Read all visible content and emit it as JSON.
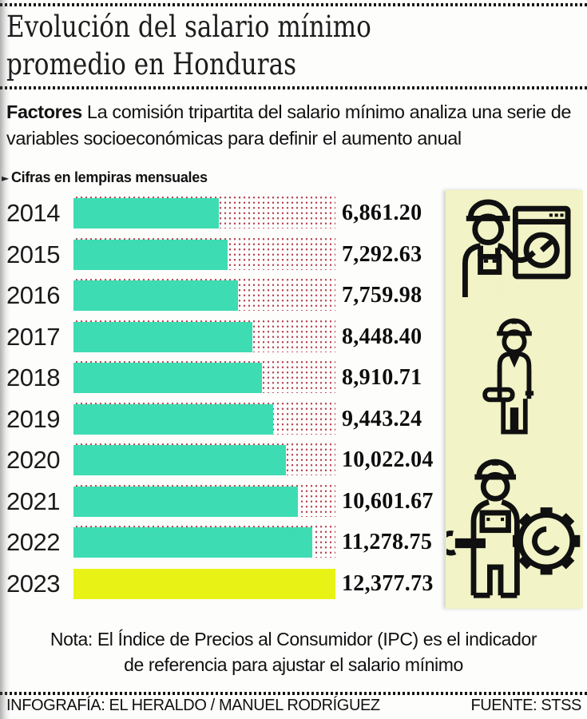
{
  "header": {
    "title_line1": "Evolución del salario mínimo",
    "title_line2": "promedio en Honduras",
    "intro_label": "Factores",
    "intro_line1": "La comisión tripartita del salario mínimo analiza una",
    "intro_line2": "serie de variables socioeconómicas para definir el aumento anual",
    "units_marker": "►",
    "units_label": "Cifras en lempiras mensuales"
  },
  "chart_data": {
    "type": "bar",
    "orientation": "horizontal",
    "title": "Evolución del salario mínimo promedio en Honduras",
    "units": "lempiras mensuales",
    "categories": [
      "2014",
      "2015",
      "2016",
      "2017",
      "2018",
      "2019",
      "2020",
      "2021",
      "2022",
      "2023"
    ],
    "values": [
      6861.2,
      7292.63,
      7759.98,
      8448.4,
      8910.71,
      9443.24,
      10022.04,
      10601.67,
      11278.75,
      12377.73
    ],
    "value_labels": [
      "6,861.20",
      "7,292.63",
      "7,759.98",
      "8,448.40",
      "8,910.71",
      "9,443.24",
      "10,022.04",
      "10,601.67",
      "11,278.75",
      "12,377.73"
    ],
    "xlim": [
      0,
      12377.73
    ],
    "grid": false,
    "legend": "none",
    "bar_color": "#3edcb2",
    "highlight_category": "2023",
    "highlight_color": "#e8f215",
    "dot_pattern_color": "#b64250"
  },
  "icon_panel": {
    "background": "#f2f3c6",
    "icons": [
      "worker-operating-machine-icon",
      "engineer-with-blueprint-icon",
      "mechanic-with-wrench-gear-icon"
    ]
  },
  "note": {
    "line1": "Nota: El Índice de Precios al Consumidor (IPC) es el indicador",
    "line2": "de referencia para ajustar el salario mínimo"
  },
  "footer": {
    "credit": "INFOGRAFÍA: EL HERALDO / MANUEL RODRÍGUEZ",
    "source": "FUENTE: STSS"
  }
}
